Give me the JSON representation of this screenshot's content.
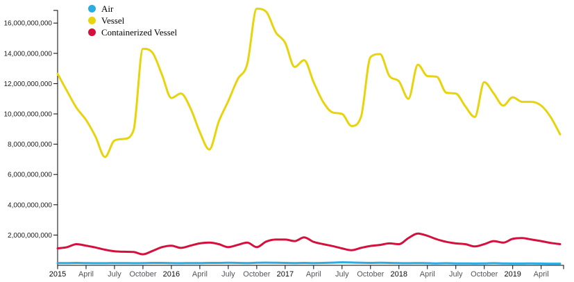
{
  "chart_data": {
    "type": "line",
    "title": "",
    "xlabel": "",
    "ylabel": "",
    "grid": false,
    "legend_position": "top-left",
    "ylim": [
      0,
      17000000000
    ],
    "y_tick_values": [
      2000000000,
      4000000000,
      6000000000,
      8000000000,
      10000000000,
      12000000000,
      14000000000,
      16000000000
    ],
    "y_tick_labels": [
      "2,000,000,000",
      "4,000,000,000",
      "6,000,000,000",
      "8,000,000,000",
      "10,000,000,000",
      "12,000,000,000",
      "14,000,000,000",
      "16,000,000,000"
    ],
    "x_tick_labels": [
      "2015",
      "April",
      "July",
      "October",
      "2016",
      "April",
      "July",
      "October",
      "2017",
      "April",
      "July",
      "October",
      "2018",
      "April",
      "July",
      "October",
      "2019",
      "April"
    ],
    "x_tick_month_indices": [
      0,
      3,
      6,
      9,
      12,
      15,
      18,
      21,
      24,
      27,
      30,
      33,
      36,
      39,
      42,
      45,
      48,
      51
    ],
    "months": [
      "2015-01",
      "2015-02",
      "2015-03",
      "2015-04",
      "2015-05",
      "2015-06",
      "2015-07",
      "2015-08",
      "2015-09",
      "2015-10",
      "2015-11",
      "2015-12",
      "2016-01",
      "2016-02",
      "2016-03",
      "2016-04",
      "2016-05",
      "2016-06",
      "2016-07",
      "2016-08",
      "2016-09",
      "2016-10",
      "2016-11",
      "2016-12",
      "2017-01",
      "2017-02",
      "2017-03",
      "2017-04",
      "2017-05",
      "2017-06",
      "2017-07",
      "2017-08",
      "2017-09",
      "2017-10",
      "2017-11",
      "2017-12",
      "2018-01",
      "2018-02",
      "2018-03",
      "2018-04",
      "2018-05",
      "2018-06",
      "2018-07",
      "2018-08",
      "2018-09",
      "2018-10",
      "2018-11",
      "2018-12",
      "2019-01",
      "2019-02",
      "2019-03",
      "2019-04",
      "2019-05",
      "2019-06"
    ],
    "series": [
      {
        "name": "Air",
        "color": "#2AACE3",
        "values": [
          150000000,
          150000000,
          160000000,
          150000000,
          140000000,
          140000000,
          150000000,
          150000000,
          140000000,
          150000000,
          160000000,
          160000000,
          150000000,
          140000000,
          150000000,
          150000000,
          160000000,
          160000000,
          170000000,
          160000000,
          150000000,
          170000000,
          180000000,
          170000000,
          160000000,
          150000000,
          160000000,
          150000000,
          160000000,
          180000000,
          200000000,
          190000000,
          170000000,
          160000000,
          170000000,
          160000000,
          150000000,
          140000000,
          150000000,
          140000000,
          130000000,
          140000000,
          130000000,
          130000000,
          120000000,
          130000000,
          140000000,
          130000000,
          120000000,
          120000000,
          130000000,
          120000000,
          110000000,
          110000000
        ]
      },
      {
        "name": "Vessel",
        "color": "#E8D40C",
        "values": [
          12650000000,
          11500000000,
          10400000000,
          9600000000,
          8500000000,
          7150000000,
          8250000000,
          8350000000,
          8900000000,
          14300000000,
          14050000000,
          12600000000,
          11050000000,
          11350000000,
          10400000000,
          8800000000,
          7650000000,
          9500000000,
          10850000000,
          12300000000,
          13300000000,
          16950000000,
          16750000000,
          15400000000,
          14700000000,
          13100000000,
          13550000000,
          12100000000,
          10800000000,
          10100000000,
          10000000000,
          9200000000,
          9800000000,
          13750000000,
          13950000000,
          12500000000,
          12150000000,
          11000000000,
          13250000000,
          12500000000,
          12450000000,
          11400000000,
          11350000000,
          10500000000,
          9800000000,
          12100000000,
          11350000000,
          10550000000,
          11100000000,
          10800000000,
          10800000000,
          10550000000,
          9800000000,
          8650000000
        ]
      },
      {
        "name": "Containerized Vessel",
        "color": "#D6103C",
        "values": [
          1120000000,
          1200000000,
          1400000000,
          1300000000,
          1180000000,
          1030000000,
          930000000,
          900000000,
          880000000,
          730000000,
          950000000,
          1200000000,
          1300000000,
          1150000000,
          1300000000,
          1450000000,
          1500000000,
          1400000000,
          1200000000,
          1350000000,
          1500000000,
          1200000000,
          1570000000,
          1700000000,
          1700000000,
          1600000000,
          1850000000,
          1550000000,
          1400000000,
          1270000000,
          1120000000,
          1000000000,
          1150000000,
          1280000000,
          1350000000,
          1450000000,
          1400000000,
          1800000000,
          2100000000,
          1950000000,
          1720000000,
          1550000000,
          1450000000,
          1400000000,
          1250000000,
          1400000000,
          1600000000,
          1500000000,
          1750000000,
          1800000000,
          1700000000,
          1600000000,
          1480000000,
          1400000000
        ]
      }
    ],
    "axis_color": "#000000"
  },
  "legend": {
    "items": [
      {
        "label": "Air"
      },
      {
        "label": "Vessel"
      },
      {
        "label": "Containerized Vessel"
      }
    ]
  }
}
